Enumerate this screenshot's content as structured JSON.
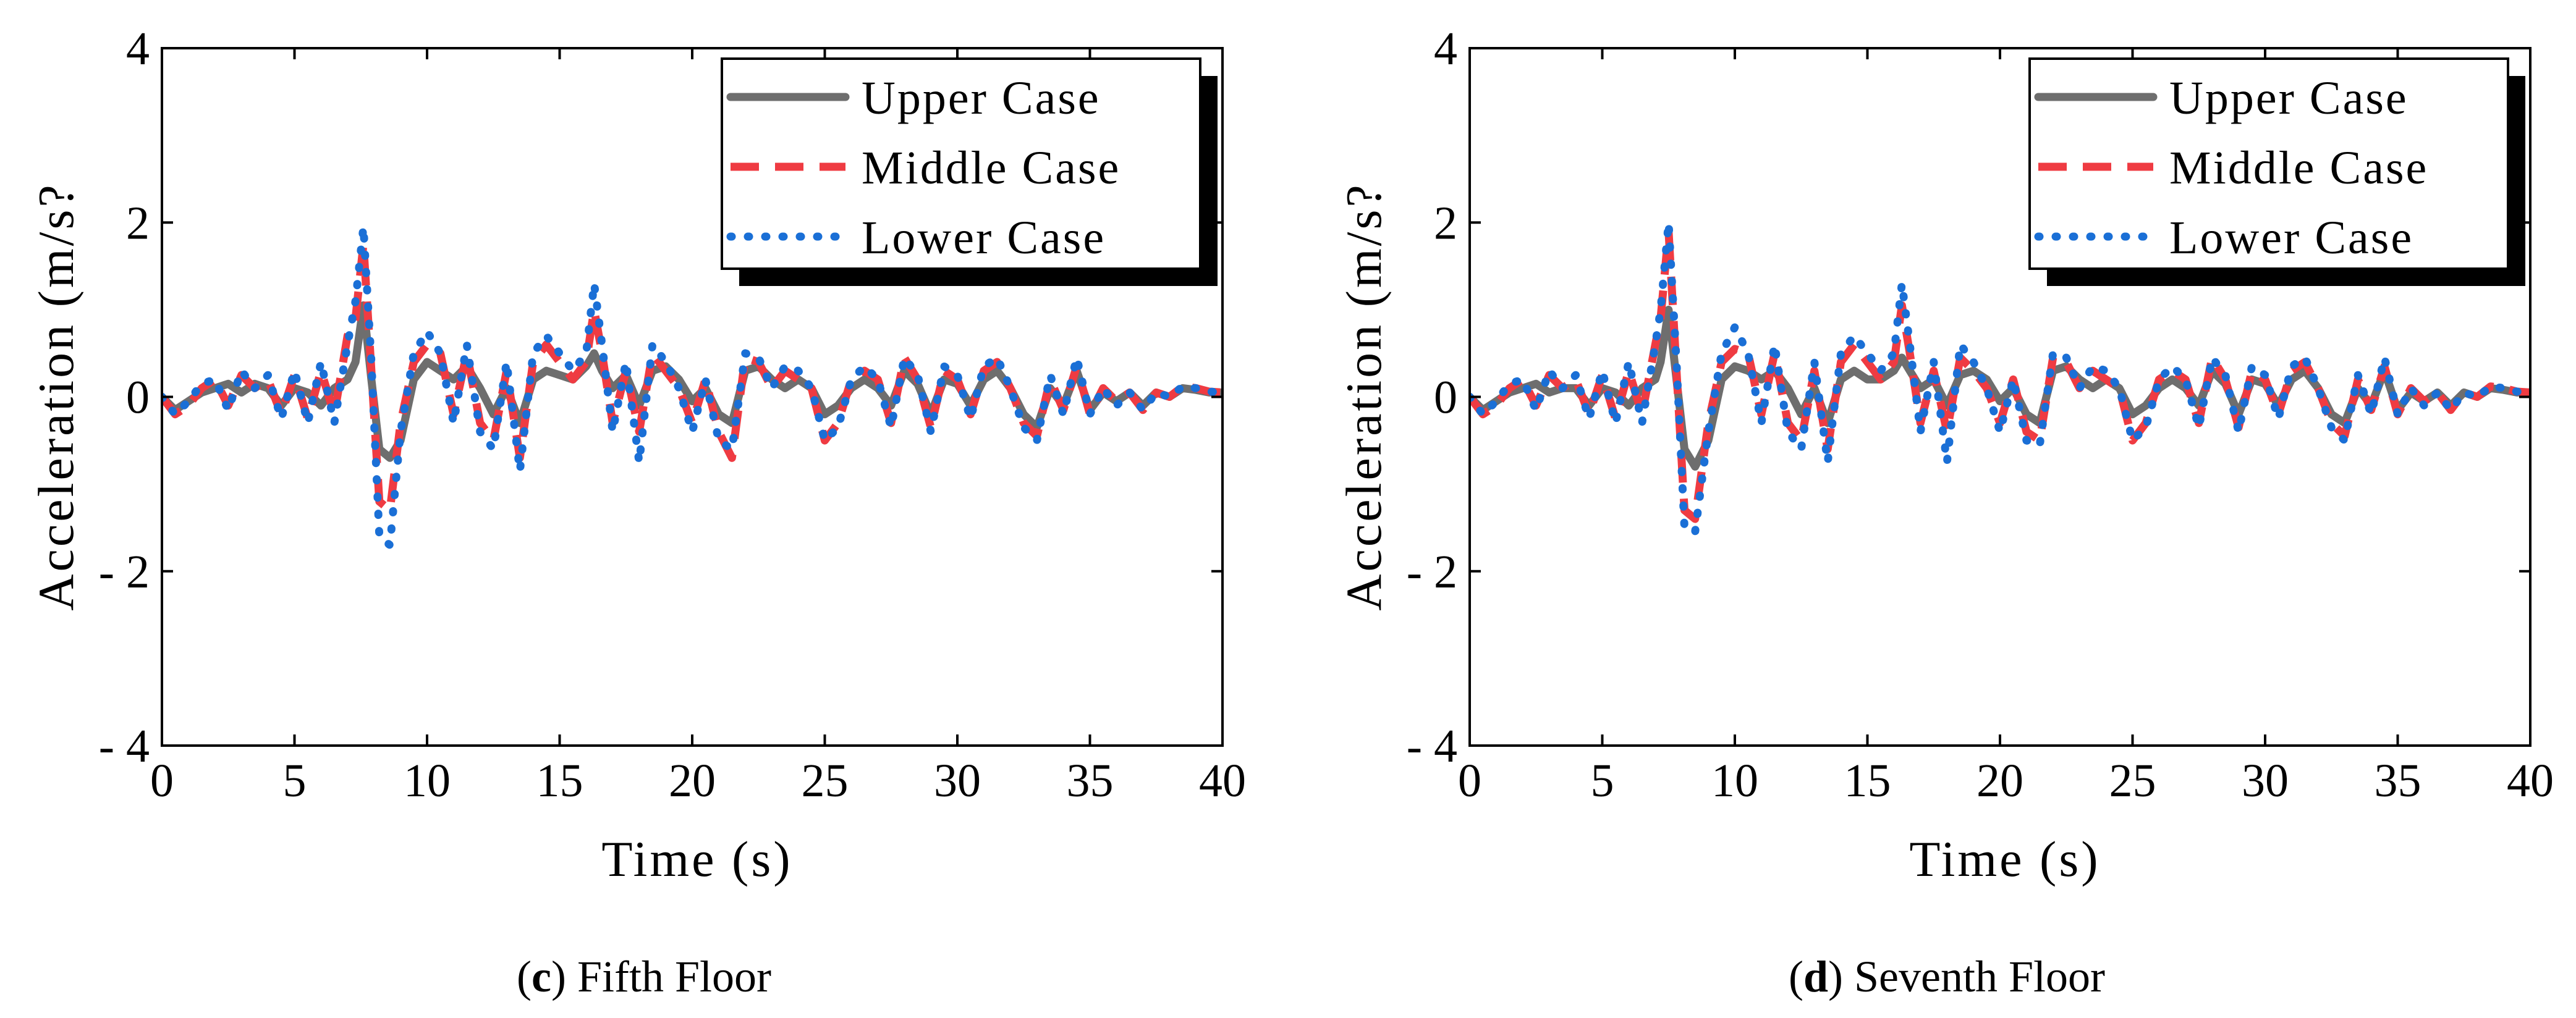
{
  "chart_data": [
    {
      "type": "line",
      "caption_letter": "c",
      "caption_text": " Fifth Floor",
      "xlabel": "Time (s)",
      "ylabel": "Acceleration (m/s?",
      "xlim": [
        0,
        40
      ],
      "ylim": [
        -4,
        4
      ],
      "xticks": [
        "0",
        "5",
        "10",
        "15",
        "20",
        "25",
        "30",
        "35",
        "40"
      ],
      "yticks": [
        "4",
        "2",
        "0",
        "- 2",
        "- 4"
      ],
      "legend_position": "top-right",
      "series": [
        {
          "name": "Upper Case",
          "color": "#6e6e6e",
          "dash": "solid",
          "x": [
            0,
            0.5,
            1,
            1.5,
            2,
            2.5,
            3,
            3.5,
            4,
            4.5,
            5,
            5.5,
            6,
            6.5,
            7,
            7.3,
            7.6,
            7.9,
            8.2,
            8.6,
            9,
            9.5,
            10,
            10.5,
            11,
            11.5,
            12,
            12.5,
            13,
            13.5,
            14,
            14.5,
            15,
            15.5,
            16,
            16.3,
            16.6,
            17,
            17.5,
            18,
            18.5,
            19,
            19.5,
            20,
            20.5,
            21,
            21.5,
            22,
            22.5,
            23,
            23.5,
            24,
            24.5,
            25,
            25.5,
            26,
            26.5,
            27,
            27.5,
            28,
            28.5,
            29,
            29.5,
            30,
            30.5,
            31,
            31.5,
            32,
            32.5,
            33,
            33.5,
            34,
            34.5,
            35,
            35.5,
            36,
            36.5,
            37,
            37.5,
            38,
            38.5,
            39,
            39.5,
            40
          ],
          "y": [
            0,
            -0.15,
            -0.05,
            0.05,
            0.1,
            0.15,
            0.05,
            0.15,
            0.1,
            -0.1,
            0.1,
            0.05,
            -0.1,
            0.1,
            0.2,
            0.4,
            1.05,
            0.2,
            -0.6,
            -0.7,
            -0.5,
            0.2,
            0.4,
            0.3,
            0.2,
            0.35,
            0.1,
            -0.2,
            0.1,
            -0.3,
            0.2,
            0.3,
            0.25,
            0.2,
            0.35,
            0.5,
            0.3,
            0.1,
            0.25,
            -0.1,
            0.3,
            0.35,
            0.2,
            -0.05,
            0.1,
            -0.2,
            -0.3,
            0.3,
            0.35,
            0.2,
            0.1,
            0.2,
            0.1,
            -0.2,
            -0.1,
            0.1,
            0.2,
            0.1,
            -0.1,
            0.3,
            0.15,
            -0.2,
            0.2,
            0.15,
            -0.1,
            0.2,
            0.3,
            0.1,
            -0.2,
            -0.35,
            0.1,
            -0.1,
            0.3,
            -0.15,
            0.05,
            -0.05,
            0.05,
            -0.1,
            0.05,
            0,
            0.1,
            0.08,
            0.05,
            0.05
          ]
        },
        {
          "name": "Middle Case",
          "color": "#ef3b42",
          "dash": "long",
          "x": [
            0,
            0.5,
            1,
            1.5,
            2,
            2.5,
            3,
            3.5,
            4,
            4.5,
            5,
            5.5,
            6,
            6.5,
            7,
            7.3,
            7.6,
            7.9,
            8.2,
            8.6,
            9,
            9.5,
            10,
            10.5,
            11,
            11.5,
            12,
            12.5,
            13,
            13.5,
            14,
            14.5,
            15,
            15.5,
            16,
            16.3,
            16.6,
            17,
            17.5,
            18,
            18.5,
            19,
            19.5,
            20,
            20.5,
            21,
            21.5,
            22,
            22.5,
            23,
            23.5,
            24,
            24.5,
            25,
            25.5,
            26,
            26.5,
            27,
            27.5,
            28,
            28.5,
            29,
            29.5,
            30,
            30.5,
            31,
            31.5,
            32,
            32.5,
            33,
            33.5,
            34,
            34.5,
            35,
            35.5,
            36,
            36.5,
            37,
            37.5,
            38,
            38.5,
            39,
            39.5,
            40
          ],
          "y": [
            0,
            -0.2,
            -0.1,
            0.1,
            0.2,
            -0.1,
            0.25,
            0.1,
            0.2,
            -0.2,
            0.25,
            -0.25,
            0.3,
            -0.2,
            0.7,
            0.9,
            1.75,
            0.3,
            -1.2,
            -1.3,
            -0.3,
            0.4,
            0.6,
            0.5,
            -0.2,
            0.5,
            -0.3,
            -0.5,
            0.3,
            -0.7,
            0.4,
            0.6,
            0.4,
            0.2,
            0.4,
            1.0,
            0.5,
            -0.3,
            0.3,
            -0.4,
            0.5,
            0.3,
            0.1,
            -0.3,
            0.2,
            -0.4,
            -0.7,
            0.45,
            0.4,
            0.1,
            0.3,
            0.2,
            0.1,
            -0.5,
            -0.3,
            0.2,
            0.3,
            0.2,
            -0.3,
            0.45,
            0.2,
            -0.35,
            0.3,
            0.2,
            -0.2,
            0.3,
            0.4,
            0.1,
            -0.3,
            -0.45,
            0.2,
            -0.15,
            0.35,
            -0.2,
            0.1,
            -0.05,
            0.05,
            -0.15,
            0.05,
            0,
            0.12,
            0.1,
            0.06,
            0.05
          ]
        },
        {
          "name": "Lower Case",
          "color": "#1a6fd6",
          "dash": "dot",
          "x": [
            0,
            0.5,
            1,
            1.5,
            2,
            2.5,
            3,
            3.5,
            4,
            4.5,
            5,
            5.5,
            6,
            6.5,
            7,
            7.3,
            7.6,
            7.9,
            8.2,
            8.6,
            9,
            9.5,
            10,
            10.5,
            11,
            11.5,
            12,
            12.5,
            13,
            13.5,
            14,
            14.5,
            15,
            15.5,
            16,
            16.3,
            16.6,
            17,
            17.5,
            18,
            18.5,
            19,
            19.5,
            20,
            20.5,
            21,
            21.5,
            22,
            22.5,
            23,
            23.5,
            24,
            24.5,
            25,
            25.5,
            26,
            26.5,
            27,
            27.5,
            28,
            28.5,
            29,
            29.5,
            30,
            30.5,
            31,
            31.5,
            32,
            32.5,
            33,
            33.5,
            34,
            34.5,
            35,
            35.5,
            36,
            36.5,
            37,
            37.5,
            38,
            38.5,
            39,
            39.5,
            40
          ],
          "y": [
            0,
            -0.2,
            -0.05,
            0.15,
            0.2,
            -0.15,
            0.3,
            0.1,
            0.25,
            -0.25,
            0.3,
            -0.3,
            0.4,
            -0.3,
            0.6,
            1.1,
            1.95,
            0.4,
            -1.6,
            -1.7,
            -0.4,
            0.5,
            0.75,
            0.5,
            -0.3,
            0.6,
            -0.4,
            -0.6,
            0.4,
            -0.85,
            0.5,
            0.7,
            0.5,
            0.3,
            0.5,
            1.3,
            0.6,
            -0.4,
            0.4,
            -0.75,
            0.6,
            0.4,
            0.1,
            -0.4,
            0.2,
            -0.5,
            -0.6,
            0.5,
            0.45,
            0.1,
            0.35,
            0.3,
            0.1,
            -0.5,
            -0.35,
            0.2,
            0.35,
            0.2,
            -0.35,
            0.45,
            0.25,
            -0.4,
            0.35,
            0.25,
            -0.25,
            0.35,
            0.45,
            0.1,
            -0.35,
            -0.5,
            0.25,
            -0.2,
            0.45,
            -0.2,
            0.1,
            -0.1,
            0.05,
            -0.15,
            0.05,
            0,
            0.12,
            0.1,
            0.06,
            0.05
          ]
        }
      ]
    },
    {
      "type": "line",
      "caption_letter": "d",
      "caption_text": " Seventh Floor",
      "xlabel": "Time (s)",
      "ylabel": "Acceleration (m/s?",
      "xlim": [
        0,
        40
      ],
      "ylim": [
        -4,
        4
      ],
      "xticks": [
        "0",
        "5",
        "10",
        "15",
        "20",
        "25",
        "30",
        "35",
        "40"
      ],
      "yticks": [
        "4",
        "2",
        "0",
        "- 2",
        "- 4"
      ],
      "legend_position": "top-right",
      "series": [
        {
          "name": "Upper Case",
          "color": "#6e6e6e",
          "dash": "solid",
          "x": [
            0,
            0.5,
            1,
            1.5,
            2,
            2.5,
            3,
            3.5,
            4,
            4.5,
            5,
            5.5,
            6,
            6.5,
            7,
            7.2,
            7.5,
            7.8,
            8.1,
            8.5,
            9,
            9.5,
            10,
            10.5,
            11,
            11.5,
            12,
            12.5,
            13,
            13.5,
            14,
            14.5,
            15,
            15.5,
            16,
            16.3,
            16.6,
            17,
            17.5,
            18,
            18.5,
            19,
            19.5,
            20,
            20.5,
            21,
            21.5,
            22,
            22.5,
            23,
            23.5,
            24,
            24.5,
            25,
            25.5,
            26,
            26.5,
            27,
            27.5,
            28,
            28.5,
            29,
            29.5,
            30,
            30.5,
            31,
            31.5,
            32,
            32.5,
            33,
            33.5,
            34,
            34.5,
            35,
            35.5,
            36,
            36.5,
            37,
            37.5,
            38,
            38.5,
            39,
            39.5,
            40
          ],
          "y": [
            0,
            -0.15,
            -0.05,
            0.05,
            0.1,
            0.15,
            0.05,
            0.1,
            0.1,
            -0.1,
            0.1,
            0.05,
            -0.1,
            0.1,
            0.2,
            0.4,
            1.0,
            0.2,
            -0.6,
            -0.8,
            -0.5,
            0.2,
            0.35,
            0.3,
            0.2,
            0.3,
            0.1,
            -0.2,
            0.1,
            -0.3,
            0.2,
            0.3,
            0.2,
            0.2,
            0.3,
            0.45,
            0.3,
            0.1,
            0.2,
            -0.1,
            0.25,
            0.3,
            0.2,
            -0.05,
            0.1,
            -0.2,
            -0.3,
            0.3,
            0.35,
            0.2,
            0.1,
            0.2,
            0.1,
            -0.2,
            -0.1,
            0.1,
            0.2,
            0.1,
            -0.1,
            0.3,
            0.15,
            -0.2,
            0.2,
            0.15,
            -0.1,
            0.2,
            0.3,
            0.1,
            -0.2,
            -0.3,
            0.1,
            -0.1,
            0.3,
            -0.15,
            0.05,
            -0.05,
            0.05,
            -0.1,
            0.05,
            0,
            0.1,
            0.08,
            0.05,
            0.05
          ]
        },
        {
          "name": "Middle Case",
          "color": "#ef3b42",
          "dash": "long",
          "x": [
            0,
            0.5,
            1,
            1.5,
            2,
            2.5,
            3,
            3.5,
            4,
            4.5,
            5,
            5.5,
            6,
            6.5,
            7,
            7.2,
            7.5,
            7.8,
            8.1,
            8.5,
            9,
            9.5,
            10,
            10.5,
            11,
            11.5,
            12,
            12.5,
            13,
            13.5,
            14,
            14.5,
            15,
            15.5,
            16,
            16.3,
            16.6,
            17,
            17.5,
            18,
            18.5,
            19,
            19.5,
            20,
            20.5,
            21,
            21.5,
            22,
            22.5,
            23,
            23.5,
            24,
            24.5,
            25,
            25.5,
            26,
            26.5,
            27,
            27.5,
            28,
            28.5,
            29,
            29.5,
            30,
            30.5,
            31,
            31.5,
            32,
            32.5,
            33,
            33.5,
            34,
            34.5,
            35,
            35.5,
            36,
            36.5,
            37,
            37.5,
            38,
            38.5,
            39,
            39.5,
            40
          ],
          "y": [
            0,
            -0.2,
            -0.1,
            0.1,
            0.2,
            -0.1,
            0.25,
            0.1,
            0.2,
            -0.2,
            0.25,
            -0.25,
            0.3,
            -0.2,
            0.6,
            0.9,
            1.9,
            0.3,
            -1.3,
            -1.4,
            -0.3,
            0.4,
            0.55,
            0.5,
            -0.2,
            0.5,
            -0.3,
            -0.5,
            0.3,
            -0.6,
            0.4,
            0.6,
            0.4,
            0.2,
            0.4,
            1.05,
            0.5,
            -0.3,
            0.3,
            -0.4,
            0.45,
            0.3,
            0.1,
            -0.3,
            0.2,
            -0.4,
            -0.5,
            0.45,
            0.4,
            0.1,
            0.3,
            0.2,
            0.1,
            -0.5,
            -0.3,
            0.2,
            0.3,
            0.2,
            -0.3,
            0.45,
            0.2,
            -0.35,
            0.3,
            0.2,
            -0.2,
            0.3,
            0.4,
            0.1,
            -0.3,
            -0.45,
            0.2,
            -0.15,
            0.35,
            -0.2,
            0.1,
            -0.05,
            0.05,
            -0.15,
            0.05,
            0,
            0.12,
            0.1,
            0.06,
            0.05
          ]
        },
        {
          "name": "Lower Case",
          "color": "#1a6fd6",
          "dash": "dot",
          "x": [
            0,
            0.5,
            1,
            1.5,
            2,
            2.5,
            3,
            3.5,
            4,
            4.5,
            5,
            5.5,
            6,
            6.5,
            7,
            7.2,
            7.5,
            7.8,
            8.1,
            8.5,
            9,
            9.5,
            10,
            10.5,
            11,
            11.5,
            12,
            12.5,
            13,
            13.5,
            14,
            14.5,
            15,
            15.5,
            16,
            16.3,
            16.6,
            17,
            17.5,
            18,
            18.5,
            19,
            19.5,
            20,
            20.5,
            21,
            21.5,
            22,
            22.5,
            23,
            23.5,
            24,
            24.5,
            25,
            25.5,
            26,
            26.5,
            27,
            27.5,
            28,
            28.5,
            29,
            29.5,
            30,
            30.5,
            31,
            31.5,
            32,
            32.5,
            33,
            33.5,
            34,
            34.5,
            35,
            35.5,
            36,
            36.5,
            37,
            37.5,
            38,
            38.5,
            39,
            39.5,
            40
          ],
          "y": [
            0,
            -0.2,
            -0.05,
            0.15,
            0.2,
            -0.15,
            0.3,
            0.1,
            0.25,
            -0.25,
            0.3,
            -0.3,
            0.4,
            -0.3,
            0.6,
            1.0,
            2.0,
            0.4,
            -1.5,
            -1.55,
            -0.4,
            0.5,
            0.8,
            0.5,
            -0.3,
            0.6,
            -0.4,
            -0.6,
            0.4,
            -0.75,
            0.5,
            0.7,
            0.5,
            0.3,
            0.5,
            1.3,
            0.6,
            -0.4,
            0.4,
            -0.75,
            0.6,
            0.4,
            0.1,
            -0.4,
            0.2,
            -0.5,
            -0.55,
            0.5,
            0.45,
            0.1,
            0.35,
            0.3,
            0.1,
            -0.5,
            -0.35,
            0.2,
            0.35,
            0.2,
            -0.35,
            0.45,
            0.25,
            -0.4,
            0.35,
            0.25,
            -0.25,
            0.35,
            0.45,
            0.1,
            -0.35,
            -0.5,
            0.25,
            -0.2,
            0.45,
            -0.2,
            0.1,
            -0.1,
            0.05,
            -0.15,
            0.05,
            0,
            0.12,
            0.1,
            0.06,
            0.05
          ]
        }
      ]
    }
  ]
}
